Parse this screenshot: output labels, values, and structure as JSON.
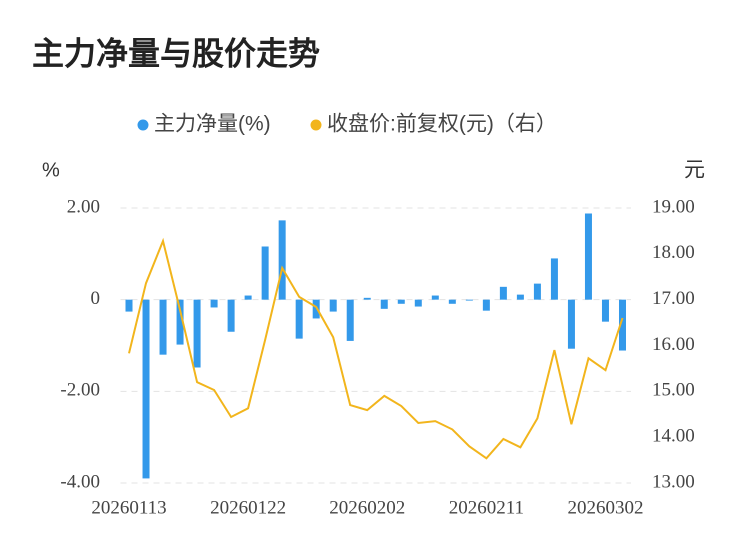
{
  "chart_data": {
    "type": "bar_line",
    "title": "主力净量与股价走势",
    "y_unit": "%",
    "y2_unit": "元",
    "categories": [
      "20260113",
      null,
      null,
      null,
      null,
      null,
      null,
      "20260122",
      null,
      null,
      null,
      null,
      null,
      null,
      "20260202",
      null,
      null,
      null,
      null,
      null,
      null,
      "20260211",
      null,
      null,
      null,
      null,
      null,
      null,
      "20260302",
      null
    ],
    "series": [
      {
        "name": "主力净量(%)",
        "type": "bar",
        "color": "#3399ea",
        "values": [
          -0.26,
          -3.9,
          -1.2,
          -0.98,
          -1.48,
          -0.17,
          -0.7,
          0.09,
          1.16,
          1.73,
          -0.85,
          -0.41,
          -0.26,
          -0.9,
          0.04,
          -0.2,
          -0.09,
          -0.15,
          0.09,
          -0.09,
          -0.02,
          -0.24,
          0.28,
          0.11,
          0.35,
          0.9,
          -1.07,
          1.88,
          -0.48,
          -1.11
        ]
      },
      {
        "name": "收盘价:前复权(元)（右）",
        "type": "line",
        "axis": "y2",
        "color": "#f2b51c",
        "values": [
          15.83,
          17.36,
          18.28,
          16.77,
          15.2,
          15.03,
          14.44,
          14.63,
          16.12,
          17.69,
          17.06,
          16.84,
          16.18,
          14.7,
          14.59,
          14.9,
          14.68,
          14.31,
          14.35,
          14.17,
          13.8,
          13.54,
          13.96,
          13.78,
          14.41,
          15.9,
          14.28,
          15.72,
          15.46,
          16.6
        ]
      }
    ],
    "ylim": [
      -4,
      2
    ],
    "yticks": [
      {
        "value": -4,
        "label": "-4.00"
      },
      {
        "value": -2,
        "label": "-2.00"
      },
      0,
      {
        "value": 2,
        "label": "2.00"
      }
    ],
    "y2lim": [
      13,
      19
    ],
    "y2ticks": [
      {
        "value": 13,
        "label": "13.00"
      },
      {
        "value": 14,
        "label": "14.00"
      },
      {
        "value": 15,
        "label": "15.00"
      },
      {
        "value": 16,
        "label": "16.00"
      },
      {
        "value": 17,
        "label": "17.00"
      },
      {
        "value": 18,
        "label": "18.00"
      },
      {
        "value": 19,
        "label": "19.00"
      }
    ],
    "grid": true
  }
}
